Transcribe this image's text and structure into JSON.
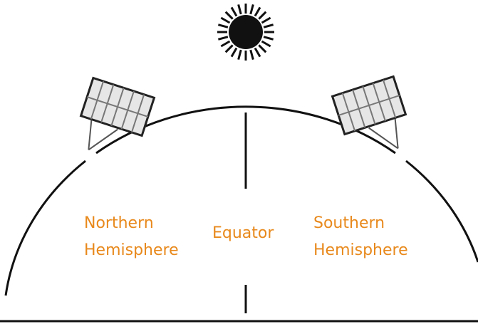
{
  "labels": {
    "northern": [
      "Northern",
      "Hemisphere"
    ],
    "equator": "Equator",
    "southern": [
      "Southern",
      "Hemisphere"
    ]
  }
}
